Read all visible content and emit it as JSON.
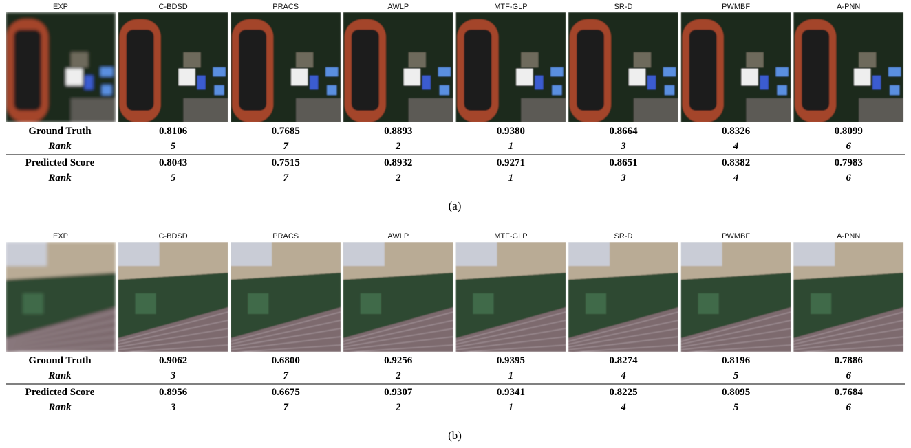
{
  "panels": [
    {
      "methods": [
        "EXP",
        "C-BDSD",
        "PRACS",
        "AWLP",
        "MTF-GLP",
        "SR-D",
        "PWMBF",
        "A-PNN"
      ],
      "rows": [
        {
          "label": "Ground Truth",
          "values": [
            "0.8106",
            "0.7685",
            "0.8893",
            "0.9380",
            "0.8664",
            "0.8326",
            "0.8099"
          ]
        },
        {
          "label": "Rank",
          "values": [
            5,
            7,
            2,
            1,
            3,
            4,
            6
          ]
        },
        {
          "label": "Predicted Score",
          "values": [
            "0.8043",
            "0.7515",
            "0.8932",
            "0.9271",
            "0.8651",
            "0.8382",
            "0.7983"
          ]
        },
        {
          "label": "Rank",
          "values": [
            5,
            7,
            2,
            1,
            3,
            4,
            6
          ]
        }
      ],
      "caption": "(a)"
    },
    {
      "methods": [
        "EXP",
        "C-BDSD",
        "PRACS",
        "AWLP",
        "MTF-GLP",
        "SR-D",
        "PWMBF",
        "A-PNN"
      ],
      "rows": [
        {
          "label": "Ground Truth",
          "values": [
            "0.9062",
            "0.6800",
            "0.9256",
            "0.9395",
            "0.8274",
            "0.8196",
            "0.7886"
          ]
        },
        {
          "label": "Rank",
          "values": [
            3,
            7,
            2,
            1,
            4,
            5,
            6
          ]
        },
        {
          "label": "Predicted Score",
          "values": [
            "0.8956",
            "0.6675",
            "0.9307",
            "0.9341",
            "0.8225",
            "0.8095",
            "0.7684"
          ]
        },
        {
          "label": "Rank",
          "values": [
            3,
            7,
            2,
            1,
            4,
            5,
            6
          ]
        }
      ],
      "caption": "(b)"
    }
  ]
}
